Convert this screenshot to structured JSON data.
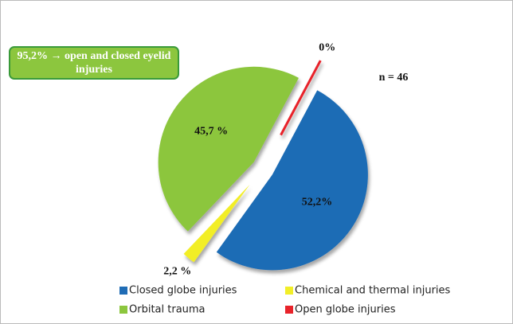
{
  "chart_data": {
    "type": "pie",
    "categories": [
      "Closed globe injuries",
      "Chemical and thermal injuries",
      "Orbital trauma",
      "Open globe injuries"
    ],
    "values": [
      52.2,
      2.2,
      45.7,
      0
    ],
    "value_labels": [
      "52,2%",
      "2,2 %",
      "45,7 %",
      "0%"
    ],
    "colors": [
      "#1f6cb5",
      "#f2ee28",
      "#8cc63e",
      "#e8232a"
    ],
    "annotations": [
      "95,2% → open and closed eyelid injuries",
      "n = 46"
    ],
    "legend": "bottom"
  }
}
